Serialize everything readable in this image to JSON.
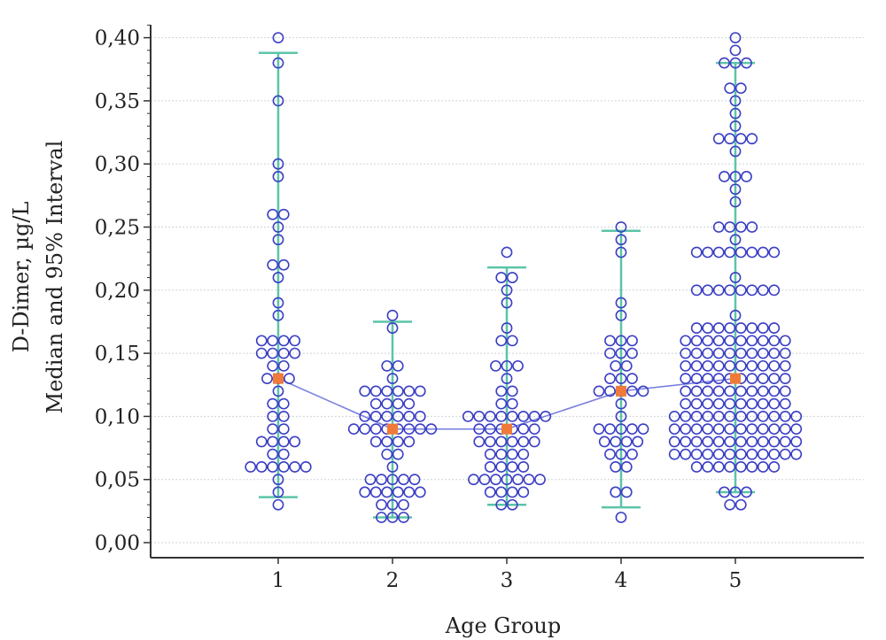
{
  "chart_data": {
    "type": "scatter",
    "subtype": "dot-plot with median and 95% interval",
    "xlabel": "Age Group",
    "ylabel_lines": [
      "D-Dimer, µg/L",
      "Median and 95% Interval"
    ],
    "categories": [
      "1",
      "2",
      "3",
      "4",
      "5"
    ],
    "y_ticks": [
      "0,00",
      "0,05",
      "0,10",
      "0,15",
      "0,20",
      "0,25",
      "0,30",
      "0,35",
      "0,40"
    ],
    "ylim": [
      0,
      0.41
    ],
    "grid": true,
    "colors": {
      "points": "#3b3fc4",
      "interval": "#5cc4a8",
      "median_marker": "#f07a3a",
      "median_line": "#7a7fe0",
      "grid": "#cfd3d8",
      "axis": "#333333"
    },
    "medians": [
      0.13,
      0.09,
      0.09,
      0.12,
      0.13
    ],
    "intervals": [
      {
        "low": 0.036,
        "high": 0.388
      },
      {
        "low": 0.02,
        "high": 0.175
      },
      {
        "low": 0.03,
        "high": 0.218
      },
      {
        "low": 0.028,
        "high": 0.247
      },
      {
        "low": 0.04,
        "high": 0.38
      }
    ],
    "groups": [
      {
        "category": "1",
        "levels": [
          [
            0.4,
            1
          ],
          [
            0.38,
            1
          ],
          [
            0.35,
            1
          ],
          [
            0.3,
            1
          ],
          [
            0.29,
            1
          ],
          [
            0.26,
            2
          ],
          [
            0.25,
            1
          ],
          [
            0.24,
            1
          ],
          [
            0.22,
            2
          ],
          [
            0.21,
            1
          ],
          [
            0.19,
            1
          ],
          [
            0.18,
            1
          ],
          [
            0.16,
            4
          ],
          [
            0.15,
            4
          ],
          [
            0.14,
            2
          ],
          [
            0.13,
            3
          ],
          [
            0.12,
            1
          ],
          [
            0.11,
            2
          ],
          [
            0.1,
            2
          ],
          [
            0.09,
            2
          ],
          [
            0.08,
            4
          ],
          [
            0.07,
            2
          ],
          [
            0.06,
            6
          ],
          [
            0.05,
            1
          ],
          [
            0.04,
            1
          ],
          [
            0.03,
            1
          ]
        ]
      },
      {
        "category": "2",
        "levels": [
          [
            0.18,
            1
          ],
          [
            0.17,
            1
          ],
          [
            0.14,
            2
          ],
          [
            0.13,
            1
          ],
          [
            0.12,
            6
          ],
          [
            0.11,
            4
          ],
          [
            0.1,
            6
          ],
          [
            0.09,
            8
          ],
          [
            0.08,
            4
          ],
          [
            0.07,
            2
          ],
          [
            0.06,
            1
          ],
          [
            0.05,
            5
          ],
          [
            0.04,
            6
          ],
          [
            0.03,
            3
          ],
          [
            0.02,
            3
          ]
        ]
      },
      {
        "category": "3",
        "levels": [
          [
            0.23,
            1
          ],
          [
            0.21,
            2
          ],
          [
            0.2,
            1
          ],
          [
            0.19,
            1
          ],
          [
            0.17,
            1
          ],
          [
            0.16,
            2
          ],
          [
            0.14,
            3
          ],
          [
            0.13,
            1
          ],
          [
            0.12,
            2
          ],
          [
            0.11,
            2
          ],
          [
            0.1,
            8
          ],
          [
            0.09,
            6
          ],
          [
            0.08,
            6
          ],
          [
            0.07,
            4
          ],
          [
            0.06,
            4
          ],
          [
            0.05,
            7
          ],
          [
            0.04,
            4
          ],
          [
            0.03,
            2
          ]
        ]
      },
      {
        "category": "4",
        "levels": [
          [
            0.25,
            1
          ],
          [
            0.24,
            1
          ],
          [
            0.23,
            1
          ],
          [
            0.19,
            1
          ],
          [
            0.18,
            1
          ],
          [
            0.16,
            3
          ],
          [
            0.15,
            3
          ],
          [
            0.14,
            2
          ],
          [
            0.13,
            3
          ],
          [
            0.12,
            5
          ],
          [
            0.11,
            1
          ],
          [
            0.1,
            1
          ],
          [
            0.09,
            5
          ],
          [
            0.08,
            4
          ],
          [
            0.07,
            3
          ],
          [
            0.06,
            2
          ],
          [
            0.04,
            2
          ],
          [
            0.02,
            1
          ]
        ]
      },
      {
        "category": "5",
        "levels": [
          [
            0.4,
            1
          ],
          [
            0.39,
            1
          ],
          [
            0.38,
            3
          ],
          [
            0.36,
            2
          ],
          [
            0.35,
            1
          ],
          [
            0.34,
            1
          ],
          [
            0.33,
            1
          ],
          [
            0.32,
            4
          ],
          [
            0.31,
            1
          ],
          [
            0.29,
            3
          ],
          [
            0.28,
            1
          ],
          [
            0.27,
            1
          ],
          [
            0.25,
            4
          ],
          [
            0.24,
            1
          ],
          [
            0.23,
            8
          ],
          [
            0.21,
            1
          ],
          [
            0.2,
            8
          ],
          [
            0.18,
            1
          ],
          [
            0.17,
            8
          ],
          [
            0.16,
            10
          ],
          [
            0.15,
            10
          ],
          [
            0.14,
            10
          ],
          [
            0.13,
            10
          ],
          [
            0.12,
            10
          ],
          [
            0.11,
            10
          ],
          [
            0.1,
            12
          ],
          [
            0.09,
            12
          ],
          [
            0.08,
            12
          ],
          [
            0.07,
            12
          ],
          [
            0.06,
            8
          ],
          [
            0.04,
            3
          ],
          [
            0.03,
            2
          ]
        ]
      }
    ]
  }
}
